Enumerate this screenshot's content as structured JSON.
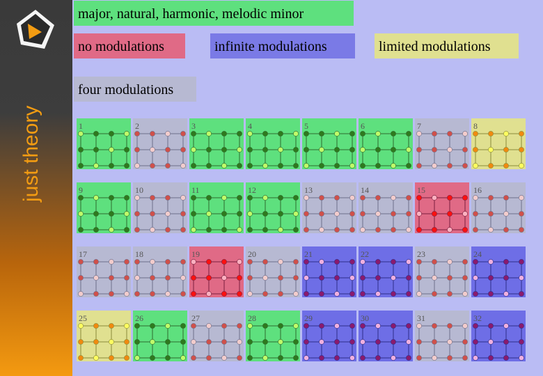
{
  "sidebar": {
    "title": "just theory",
    "logo_icon": "play-triangle-logo-icon"
  },
  "labels": {
    "scales": "major, natural, harmonic, melodic minor",
    "no_mod": "no modulations",
    "infinite_mod": "infinite modulations",
    "limited_mod": "limited modulations",
    "four_mod": "four modulations"
  },
  "colors": {
    "sidebar_orange": "#f39c12",
    "label_green": "#5ee07e",
    "label_red": "#e06a86",
    "label_blue": "#7a7ae6",
    "label_yellow": "#e0e090",
    "label_gray": "#b7b9d2",
    "page_background": "#babcf4"
  },
  "lattice": {
    "legend": {
      "G": "four modulations (green)",
      "R": "no modulations (red)",
      "B": "infinite modulations (blue)",
      "Y": "limited modulations (yellow)",
      "N": "neutral (gray)"
    },
    "cells": [
      {
        "n": "1",
        "c": "G"
      },
      {
        "n": "2",
        "c": "N"
      },
      {
        "n": "3",
        "c": "G"
      },
      {
        "n": "4",
        "c": "G"
      },
      {
        "n": "5",
        "c": "G"
      },
      {
        "n": "6",
        "c": "G"
      },
      {
        "n": "7",
        "c": "N"
      },
      {
        "n": "8",
        "c": "Y"
      },
      {
        "n": "9",
        "c": "G"
      },
      {
        "n": "10",
        "c": "N"
      },
      {
        "n": "11",
        "c": "G"
      },
      {
        "n": "12",
        "c": "G"
      },
      {
        "n": "13",
        "c": "N"
      },
      {
        "n": "14",
        "c": "N"
      },
      {
        "n": "15",
        "c": "R"
      },
      {
        "n": "16",
        "c": "N"
      },
      {
        "n": "17",
        "c": "N"
      },
      {
        "n": "18",
        "c": "N"
      },
      {
        "n": "19",
        "c": "R"
      },
      {
        "n": "20",
        "c": "N"
      },
      {
        "n": "21",
        "c": "B"
      },
      {
        "n": "22",
        "c": "B"
      },
      {
        "n": "23",
        "c": "N"
      },
      {
        "n": "24",
        "c": "B"
      },
      {
        "n": "25",
        "c": "Y"
      },
      {
        "n": "26",
        "c": "G"
      },
      {
        "n": "27",
        "c": "N"
      },
      {
        "n": "28",
        "c": "G"
      },
      {
        "n": "29",
        "c": "B"
      },
      {
        "n": "30",
        "c": "B"
      },
      {
        "n": "31",
        "c": "N"
      },
      {
        "n": "32",
        "c": "B"
      }
    ]
  }
}
